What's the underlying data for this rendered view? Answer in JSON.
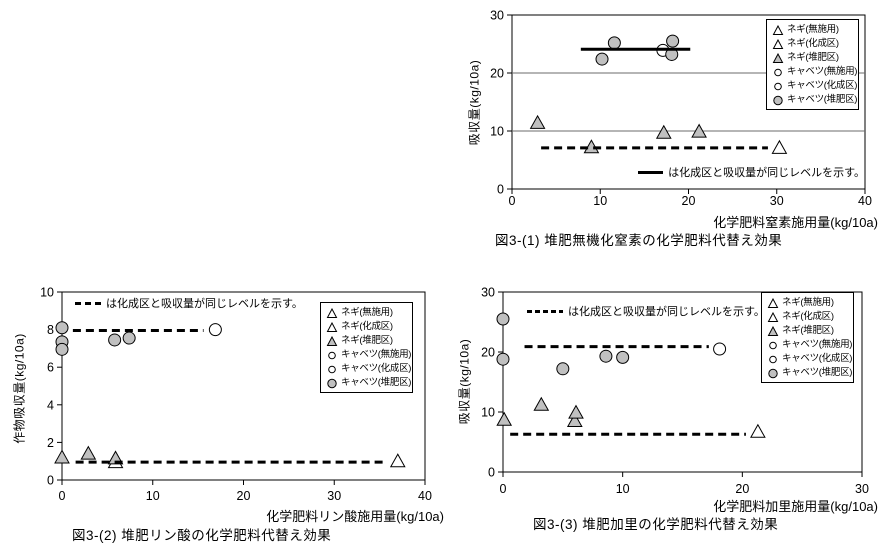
{
  "style_colors": {
    "marker_fill_gray": "#c0c0c0",
    "marker_stroke": "#000000",
    "reference_line": "#000000",
    "gridline": "#6b6b6b",
    "plot_border": "#000000"
  },
  "chart_data": [
    {
      "id": "fig3-1",
      "type": "scatter",
      "title": "図3-(1) 堆肥無機化窒素の化学肥料代替え効果",
      "xlabel": "化学肥料窒素施用量(kg/10a)",
      "ylabel": "吸収量(kg/10a)",
      "xlim": [
        0,
        40
      ],
      "ylim": [
        0,
        30
      ],
      "xticks": [
        0,
        10,
        20,
        30,
        40
      ],
      "yticks": [
        0,
        10,
        20,
        30
      ],
      "gridlines_y": [
        10,
        20
      ],
      "legend_position": "right-top",
      "legend": [
        {
          "label": "ネギ(無施用)",
          "marker": "triangle-open"
        },
        {
          "label": "ネギ(化成区)",
          "marker": "triangle-open"
        },
        {
          "label": "ネギ(堆肥区)",
          "marker": "triangle-gray"
        },
        {
          "label": "キャベツ(無施用)",
          "marker": "circle-open"
        },
        {
          "label": "キャベツ(化成区)",
          "marker": "circle-open"
        },
        {
          "label": "キャベツ(堆肥区)",
          "marker": "circle-gray"
        }
      ],
      "series": [
        {
          "name": "キャベツ(化成区)",
          "marker": "circle-open",
          "points": [
            [
              17.1,
              23.9
            ]
          ]
        },
        {
          "name": "キャベツ(堆肥区)",
          "marker": "circle-gray",
          "points": [
            [
              10.2,
              22.4
            ],
            [
              11.6,
              25.2
            ],
            [
              18.2,
              25.5
            ],
            [
              18.1,
              23.2
            ]
          ]
        },
        {
          "name": "ネギ(化成区)",
          "marker": "triangle-open",
          "points": [
            [
              30.3,
              7.1
            ]
          ]
        },
        {
          "name": "ネギ(堆肥区)",
          "marker": "triangle-gray",
          "points": [
            [
              2.9,
              11.4
            ],
            [
              9.0,
              7.2
            ],
            [
              17.2,
              9.7
            ],
            [
              21.2,
              9.9
            ]
          ]
        }
      ],
      "ref_lines": [
        {
          "style": "solid",
          "y": 24.1,
          "x1": 7.8,
          "x2": 20.2
        },
        {
          "style": "dashed",
          "y": 7.1,
          "x1": 3.3,
          "x2": 29.0
        }
      ],
      "annotation": {
        "swatch": "solid",
        "text": "は化成区と吸収量が同じレベルを示す。"
      }
    },
    {
      "id": "fig3-2",
      "type": "scatter",
      "title": "図3-(2)  堆肥リン酸の化学肥料代替え効果",
      "xlabel": "化学肥料リン酸施用量(kg/10a)",
      "ylabel": "作物吸収量(kg/10a)",
      "xlim": [
        0,
        40
      ],
      "ylim": [
        0,
        10
      ],
      "xticks": [
        0,
        10,
        20,
        30,
        40
      ],
      "yticks": [
        0,
        2,
        4,
        6,
        8,
        10
      ],
      "gridlines_y": [],
      "legend_position": "right-top",
      "legend": [
        {
          "label": "ネギ(無施用)",
          "marker": "triangle-open"
        },
        {
          "label": "ネギ(化成区)",
          "marker": "triangle-open"
        },
        {
          "label": "ネギ(堆肥区)",
          "marker": "triangle-gray"
        },
        {
          "label": "キャベツ(無施用)",
          "marker": "circle-open"
        },
        {
          "label": "キャベツ(化成区)",
          "marker": "circle-open"
        },
        {
          "label": "キャベツ(堆肥区)",
          "marker": "circle-gray"
        }
      ],
      "series": [
        {
          "name": "キャベツ(化成区)",
          "marker": "circle-open",
          "points": [
            [
              16.9,
              8.0
            ]
          ]
        },
        {
          "name": "キャベツ(堆肥区)",
          "marker": "circle-gray",
          "points": [
            [
              0,
              8.1
            ],
            [
              0,
              7.35
            ],
            [
              0,
              6.95
            ],
            [
              5.8,
              7.45
            ],
            [
              7.4,
              7.55
            ]
          ]
        },
        {
          "name": "ネギ(化成区)",
          "marker": "triangle-open",
          "points": [
            [
              5.9,
              0.95
            ],
            [
              37.0,
              1.0
            ]
          ]
        },
        {
          "name": "ネギ(堆肥区)",
          "marker": "triangle-gray",
          "points": [
            [
              0,
              1.2
            ],
            [
              2.9,
              1.4
            ],
            [
              5.9,
              1.15
            ]
          ]
        }
      ],
      "ref_lines": [
        {
          "style": "dashed",
          "y": 7.95,
          "x1": 1.2,
          "x2": 15.6
        },
        {
          "style": "dashed",
          "y": 0.95,
          "x1": 1.5,
          "x2": 35.8
        }
      ],
      "annotation": {
        "swatch": "dashed3",
        "text": "は化成区と吸収量が同じレベルを示す。"
      }
    },
    {
      "id": "fig3-3",
      "type": "scatter",
      "title": "図3-(3)  堆肥加里の化学肥料代替え効果",
      "xlabel": "化学肥料加里施用量(kg/10a)",
      "ylabel": "吸収量(kg/10a)",
      "xlim": [
        0,
        30
      ],
      "ylim": [
        0,
        30
      ],
      "xticks": [
        0,
        10,
        20,
        30
      ],
      "yticks": [
        0,
        10,
        20,
        30
      ],
      "gridlines_y": [],
      "legend_position": "right-top",
      "legend": [
        {
          "label": "ネギ(無施用)",
          "marker": "triangle-open"
        },
        {
          "label": "ネギ(化成区)",
          "marker": "triangle-open"
        },
        {
          "label": "ネギ(堆肥区)",
          "marker": "triangle-gray"
        },
        {
          "label": "キャベツ(無施用)",
          "marker": "circle-open"
        },
        {
          "label": "キャベツ(化成区)",
          "marker": "circle-open"
        },
        {
          "label": "キャベツ(堆肥区)",
          "marker": "circle-gray"
        }
      ],
      "series": [
        {
          "name": "キャベツ(化成区)",
          "marker": "circle-open",
          "points": [
            [
              18.1,
              20.5
            ]
          ]
        },
        {
          "name": "キャベツ(堆肥区)",
          "marker": "circle-gray",
          "points": [
            [
              0,
              25.5
            ],
            [
              0,
              18.8
            ],
            [
              5.0,
              17.2
            ],
            [
              8.6,
              19.3
            ],
            [
              10.0,
              19.1
            ]
          ]
        },
        {
          "name": "ネギ(化成区)",
          "marker": "triangle-open",
          "points": [
            [
              21.3,
              6.7
            ]
          ]
        },
        {
          "name": "ネギ(堆肥区)",
          "marker": "triangle-gray",
          "points": [
            [
              0.1,
              8.7
            ],
            [
              3.2,
              11.2
            ],
            [
              6.0,
              8.5
            ],
            [
              6.1,
              9.9
            ]
          ]
        }
      ],
      "ref_lines": [
        {
          "style": "dashed",
          "y": 20.9,
          "x1": 1.8,
          "x2": 17.2
        },
        {
          "style": "dashed",
          "y": 6.3,
          "x1": 0.6,
          "x2": 20.3
        }
      ],
      "annotation": {
        "swatch": "dashed5",
        "text": "は化成区と吸収量が同じレベルを示す。"
      }
    }
  ]
}
